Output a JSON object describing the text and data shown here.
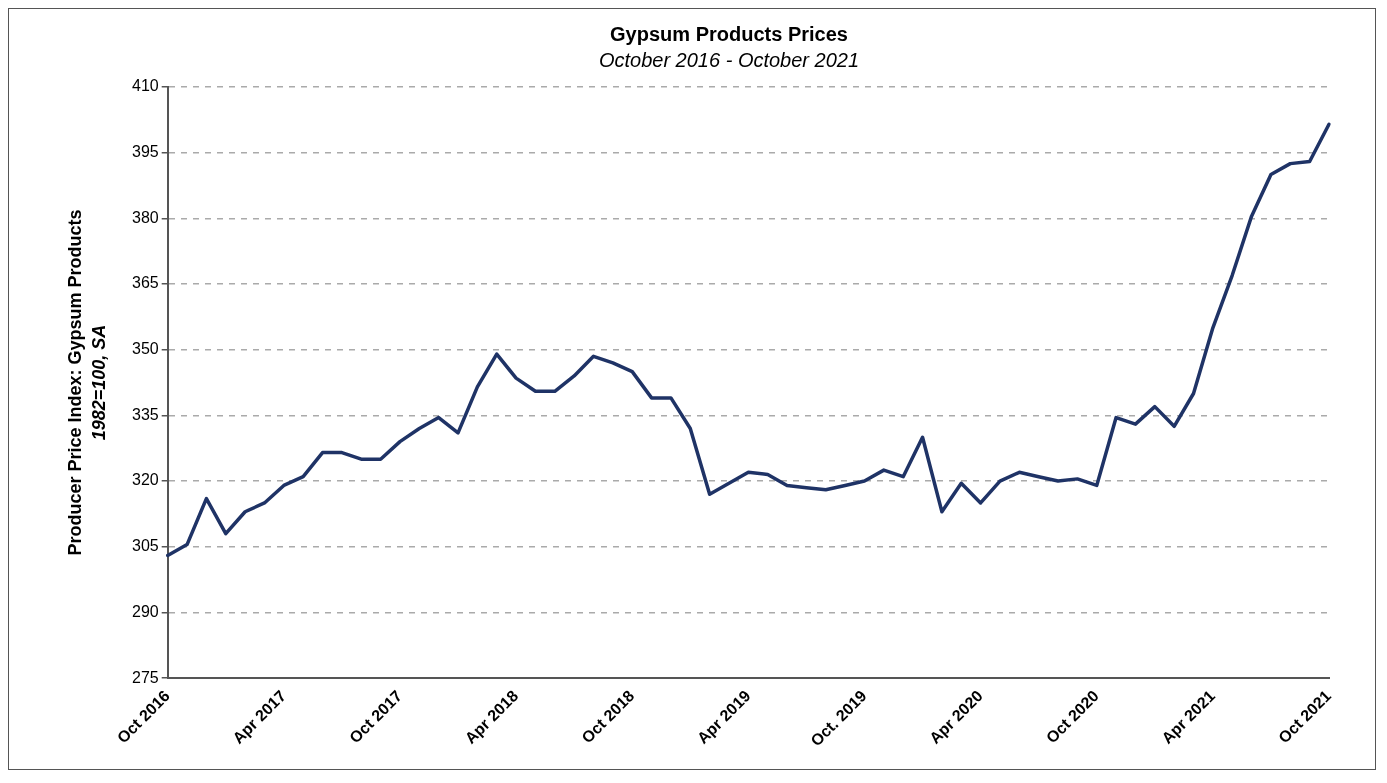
{
  "chart_data": {
    "type": "line",
    "title": "Gypsum Products Prices",
    "subtitle": "October 2016 - October 2021",
    "ylabel": "Producer Price Index: Gypsum Products\n1982=100, SA",
    "categories": [
      "Oct 2016",
      null,
      null,
      null,
      null,
      null,
      "Apr 2017",
      null,
      null,
      null,
      null,
      null,
      "Oct 2017",
      null,
      null,
      null,
      null,
      null,
      "Apr 2018",
      null,
      null,
      null,
      null,
      null,
      "Oct 2018",
      null,
      null,
      null,
      null,
      null,
      "Apr 2019",
      null,
      null,
      null,
      null,
      null,
      "Oct. 2019",
      null,
      null,
      null,
      null,
      null,
      "Apr 2020",
      null,
      null,
      null,
      null,
      null,
      "Oct 2020",
      null,
      null,
      null,
      null,
      null,
      "Apr 2021",
      null,
      null,
      null,
      null,
      null,
      "Oct 2021"
    ],
    "series": [
      {
        "color": "#1f3366",
        "values": [
          303,
          305.5,
          316,
          308,
          313,
          315,
          319,
          321,
          326.5,
          326.5,
          325,
          325,
          329,
          332,
          334.5,
          331,
          341.5,
          349,
          343.5,
          340.5,
          340.5,
          344,
          348.5,
          347,
          345,
          339,
          339,
          332,
          317,
          319.5,
          322,
          321.5,
          319,
          318.5,
          318,
          319,
          320,
          322.5,
          321,
          330,
          313,
          319.5,
          315,
          320,
          322,
          321,
          320,
          320.5,
          319,
          334.5,
          333,
          337,
          332.5,
          340,
          355,
          367,
          380.5,
          390,
          392.5,
          393,
          401.5
        ]
      }
    ],
    "ylim": [
      275,
      410
    ],
    "yticks": [
      275,
      290,
      305,
      320,
      335,
      350,
      365,
      380,
      395,
      410
    ],
    "grid": "y",
    "legend": false,
    "marker": "none",
    "line_style": "solid"
  }
}
